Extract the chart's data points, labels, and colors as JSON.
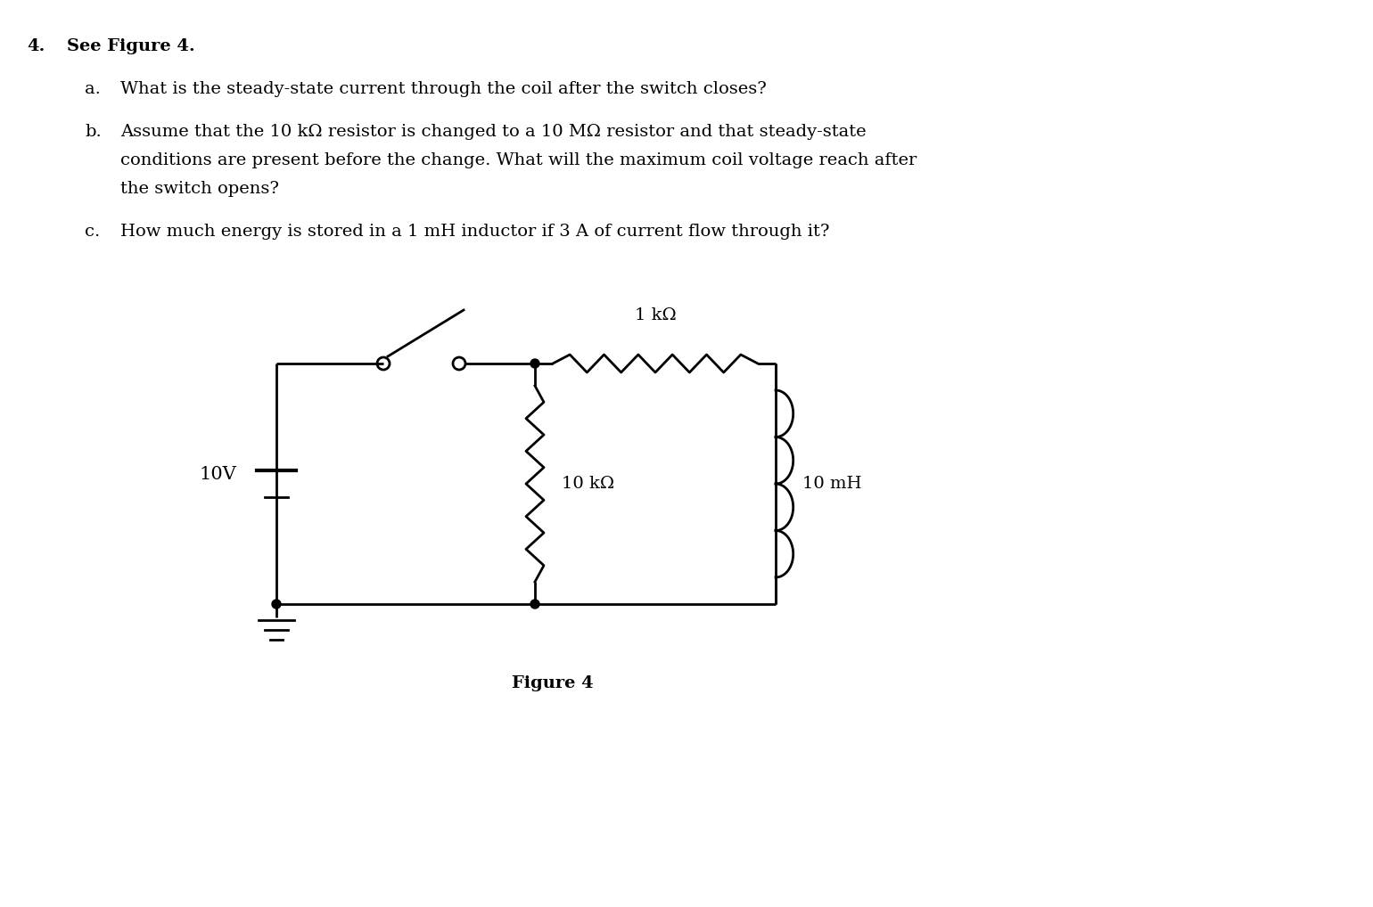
{
  "background_color": "#ffffff",
  "line_color": "#000000",
  "line_width": 2.0,
  "question_number": "4.",
  "question_text": "See Figure 4.",
  "sub_a": "What is the steady-state current through the coil after the switch closes?",
  "sub_b_line1": "Assume that the 10 kΩ resistor is changed to a 10 MΩ resistor and that steady-state",
  "sub_b_line2": "conditions are present before the change. What will the maximum coil voltage reach after",
  "sub_b_line3": "the switch opens?",
  "sub_c": "How much energy is stored in a 1 mH inductor if 3 A of current flow through it?",
  "figure_label": "Figure 4",
  "voltage_label": "10V",
  "r1_label": "1 kΩ",
  "r2_label": "10 kΩ",
  "ind_label": "10 mH",
  "font_size_text": 14,
  "font_size_labels": 13
}
